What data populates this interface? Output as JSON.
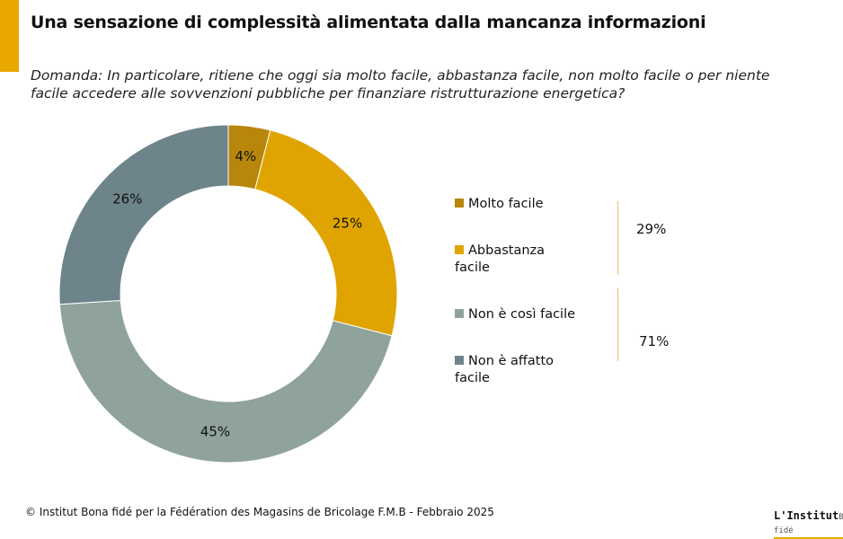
{
  "header": {
    "title": "Una sensazione di complessità alimentata dalla mancanza informazioni",
    "accent_color": "#E8A800"
  },
  "question": "Domanda: In particolare, ritiene che oggi sia molto facile, abbastanza facile, non molto facile o per niente facile accedere alle sovvenzioni pubbliche per finanziare ristrutturazione energetica?",
  "chart_data": {
    "type": "pie",
    "donut": true,
    "categories": [
      "Molto facile",
      "Abbastanza facile",
      "Non è così facile",
      "Non è affatto facile"
    ],
    "values": [
      4,
      25,
      45,
      26
    ],
    "labels": [
      "4%",
      "25%",
      "45%",
      "26%"
    ],
    "colors": [
      "#B8860B",
      "#E0A400",
      "#8FA39C",
      "#6D848A"
    ],
    "legend_placement": "right",
    "groups": [
      {
        "label": "29%",
        "value": 29
      },
      {
        "label": "71%",
        "value": 71
      }
    ]
  },
  "footer": "© Institut Bona fidé per la Fédération des Magasins de Bricolage F.M.B - Febbraio 2025",
  "logo": {
    "main": "L'Institut",
    "sub": "Bona fidé"
  }
}
